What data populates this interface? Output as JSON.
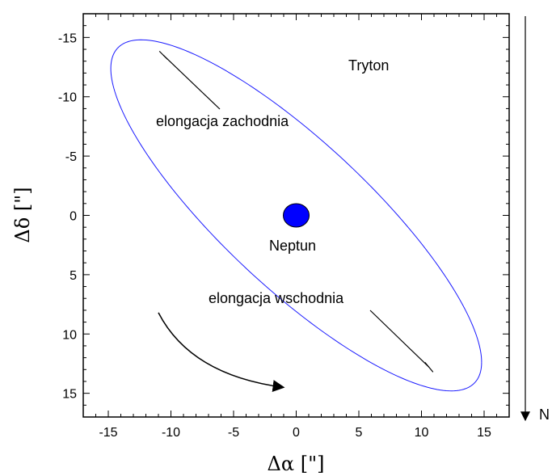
{
  "chart_data": {
    "type": "scatter",
    "xlabel": "Δα [\"]",
    "ylabel": "Δδ [\"]",
    "xlim": [
      -17,
      17
    ],
    "ylim": [
      -17,
      17
    ],
    "y_axis_inverted": true,
    "x_ticks": [
      -15,
      -10,
      -5,
      0,
      5,
      10,
      15
    ],
    "y_ticks": [
      -15,
      -10,
      -5,
      0,
      5,
      10,
      15
    ],
    "series": [
      {
        "name": "Tryton",
        "kind": "ellipse-orbit",
        "center": [
          0,
          0
        ],
        "extremes": {
          "x_min": -14.8,
          "x_max": 14.8,
          "y_min": -14.8,
          "y_max": 14.8
        },
        "color": "#1a1aff"
      }
    ],
    "points": [
      {
        "name": "Neptun",
        "x": 0,
        "y": 0,
        "color": "#0000ff"
      }
    ],
    "annotations": [
      {
        "text": "Tryton"
      },
      {
        "text": "elongacja zachodnia",
        "target": [
          -10.6,
          -13.5
        ]
      },
      {
        "text": "elongacja wschodnia",
        "target": [
          10.6,
          12.8
        ]
      },
      {
        "text": "Neptun"
      }
    ],
    "direction_arrow": {
      "from": [
        -11,
        8.2
      ],
      "to": [
        -1,
        14.5
      ],
      "meaning": "orbital direction"
    },
    "north_indicator": {
      "label": "N",
      "direction": "down"
    },
    "grid": false
  }
}
